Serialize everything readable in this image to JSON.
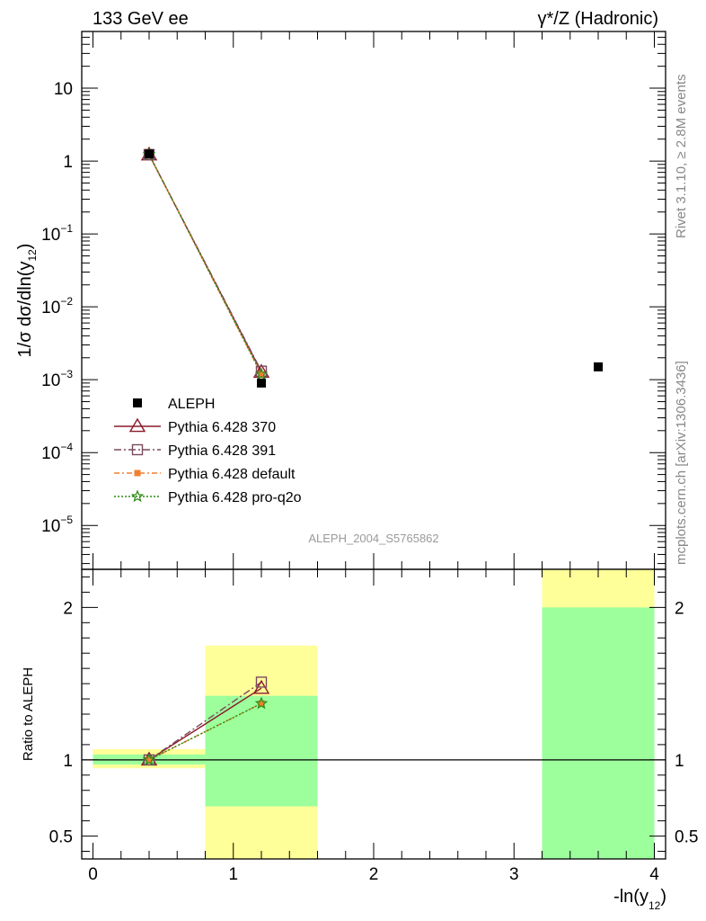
{
  "header": {
    "left_title": "133 GeV ee",
    "right_title": "γ*/Z (Hadronic)"
  },
  "side_labels": {
    "rivet": "Rivet 3.1.10, ≥ 2.8M events",
    "mcplots": "mcplots.cern.ch [arXiv:1306.3436]"
  },
  "watermark": "ALEPH_2004_S5765862",
  "colors": {
    "p370": "#8b1a2a",
    "p391": "#7a4a5e",
    "pdefault": "#f08030",
    "pq2o": "#2a8a10",
    "band_inner": "#9cff9c",
    "band_outer": "#ffff99"
  },
  "chart_data": [
    {
      "id": "main",
      "type": "scatter",
      "ylabel": "1/σ dσ/dln(y12)",
      "yscale": "log",
      "xlim": [
        -0.08,
        4.08
      ],
      "ylim": [
        2.5e-06,
        60
      ],
      "y_ticks": [
        {
          "value": 1e-05,
          "base": "10",
          "exp": "−5"
        },
        {
          "value": 0.0001,
          "base": "10",
          "exp": "−4"
        },
        {
          "value": 0.001,
          "base": "10",
          "exp": "−3"
        },
        {
          "value": 0.01,
          "base": "10",
          "exp": "−2"
        },
        {
          "value": 0.1,
          "base": "10",
          "exp": "−1"
        },
        {
          "value": 1,
          "base": "1",
          "exp": ""
        },
        {
          "value": 10,
          "base": "10",
          "exp": ""
        }
      ],
      "data_series": {
        "name": "ALEPH",
        "x": [
          0.4,
          1.2,
          3.6
        ],
        "y": [
          1.25,
          0.0009,
          0.0015
        ]
      },
      "mc_series": [
        {
          "name": "Pythia 6.428 370",
          "key": "p370",
          "x": [
            0.4,
            1.2
          ],
          "y": [
            1.22,
            0.00127
          ]
        },
        {
          "name": "Pythia 6.428 391",
          "key": "p391",
          "x": [
            0.4,
            1.2
          ],
          "y": [
            1.23,
            0.00131
          ]
        },
        {
          "name": "Pythia 6.428 default",
          "key": "pdefault",
          "x": [
            0.4,
            1.2
          ],
          "y": [
            1.24,
            0.00118
          ]
        },
        {
          "name": "Pythia 6.428 pro-q2o",
          "key": "pq2o",
          "x": [
            0.4,
            1.2
          ],
          "y": [
            1.24,
            0.00119
          ]
        }
      ]
    },
    {
      "id": "ratio",
      "type": "scatter",
      "xlabel": "-ln(y12)",
      "ylabel": "Ratio to ALEPH",
      "xlim": [
        -0.08,
        4.08
      ],
      "ylim": [
        0.35,
        2.25
      ],
      "x_ticks": [
        "0",
        "1",
        "2",
        "3",
        "4"
      ],
      "y_ticks": [
        0.5,
        1,
        2
      ],
      "y_tick_labels": [
        "0.5",
        "1",
        "2"
      ],
      "bands": [
        {
          "x0": 0.0,
          "x1": 0.8,
          "inner": [
            0.97,
            1.035
          ],
          "outer": [
            0.945,
            1.07
          ]
        },
        {
          "x0": 0.8,
          "x1": 1.6,
          "inner": [
            0.695,
            1.42
          ],
          "outer": [
            0.35,
            1.75
          ]
        },
        {
          "x0": 3.2,
          "x1": 4.0,
          "inner": [
            0.35,
            2.0
          ],
          "outer": [
            0.35,
            2.25
          ]
        }
      ],
      "mc_series": [
        {
          "name": "Pythia 6.428 370",
          "key": "p370",
          "x": [
            0.4,
            1.2
          ],
          "y": [
            1.0,
            1.47
          ]
        },
        {
          "name": "Pythia 6.428 391",
          "key": "p391",
          "x": [
            0.4,
            1.2
          ],
          "y": [
            1.0,
            1.51
          ]
        },
        {
          "name": "Pythia 6.428 default",
          "key": "pdefault",
          "x": [
            0.4,
            1.2
          ],
          "y": [
            1.0,
            1.37
          ]
        },
        {
          "name": "Pythia 6.428 pro-q2o",
          "key": "pq2o",
          "x": [
            0.4,
            1.2
          ],
          "y": [
            1.0,
            1.37
          ]
        }
      ]
    }
  ]
}
